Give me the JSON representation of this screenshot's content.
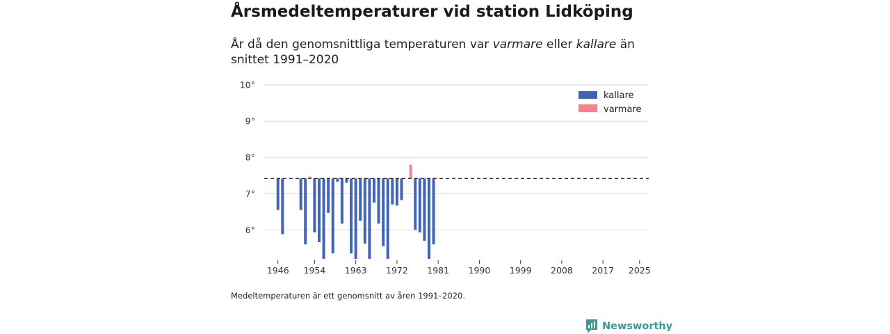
{
  "header": {
    "title": "Årsmedeltemperaturer vid station Lidköping",
    "subtitle_pre": "År då den genomsnittliga temperaturen var ",
    "subtitle_warm": "varmare",
    "subtitle_mid": " eller ",
    "subtitle_cold": "kallare",
    "subtitle_post": " än snittet 1991–2020"
  },
  "footer": {
    "note": "Medeltemperaturen är ett genomsnitt av åren 1991–2020.",
    "brand": "Newsworthy"
  },
  "colors": {
    "cold": "#4264b8",
    "warm": "#f48390",
    "grid": "#d9d9d9",
    "baseline": "#333333",
    "brand": "#3a9a8f"
  },
  "chart_data": {
    "type": "bar",
    "title": "Årsmedeltemperaturer vid station Lidköping",
    "xlabel": "",
    "ylabel": "",
    "baseline": 7.42,
    "baseline_label": "snittet 1991–2020",
    "xlim": [
      1943,
      2027
    ],
    "ylim": [
      5.2,
      10.0
    ],
    "y_ticks": [
      6,
      7,
      8,
      9,
      10
    ],
    "y_tick_suffix": "°",
    "x_ticks": [
      1946,
      1954,
      1963,
      1972,
      1981,
      1990,
      1999,
      2008,
      2017,
      2025
    ],
    "grid": true,
    "legend": {
      "position": "top-right",
      "entries": [
        {
          "key": "cold",
          "label": "kallare"
        },
        {
          "key": "warm",
          "label": "varmare"
        }
      ]
    },
    "years": [
      1946,
      1947,
      1951,
      1952,
      1953,
      1954,
      1955,
      1956,
      1957,
      1958,
      1959,
      1960,
      1961,
      1962,
      1963,
      1964,
      1965,
      1966,
      1967,
      1968,
      1969,
      1970,
      1971,
      1972,
      1973,
      1975,
      1976,
      1977,
      1978,
      1979,
      1980
    ],
    "values": [
      6.55,
      5.88,
      6.55,
      5.6,
      7.47,
      5.93,
      5.66,
      5.2,
      6.47,
      5.35,
      7.33,
      6.17,
      7.3,
      5.35,
      5.2,
      6.25,
      5.62,
      5.2,
      6.75,
      6.17,
      5.55,
      5.2,
      6.7,
      6.67,
      6.82,
      7.8,
      6.0,
      5.93,
      5.7,
      5.2,
      5.6
    ]
  }
}
